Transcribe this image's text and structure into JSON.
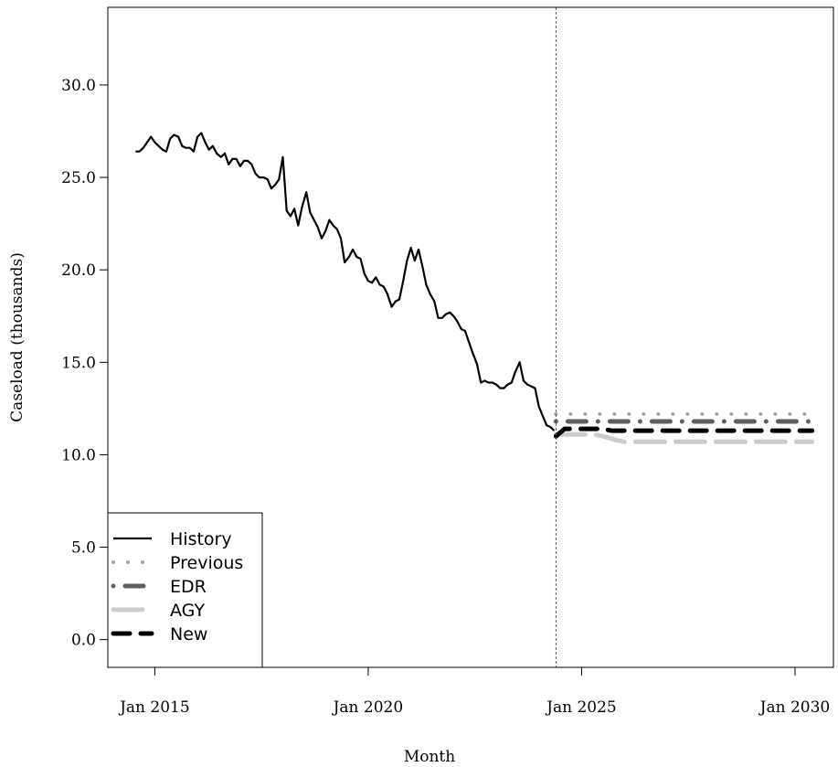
{
  "chart_data": {
    "type": "line",
    "xlabel": "Month",
    "ylabel": "Caseload (thousands)",
    "xlim": [
      2013.9,
      2030.9
    ],
    "ylim": [
      -1.5,
      34.2
    ],
    "x_ticks": [
      {
        "value": 2015,
        "label": "Jan 2015"
      },
      {
        "value": 2020,
        "label": "Jan 2020"
      },
      {
        "value": 2025,
        "label": "Jan 2025"
      },
      {
        "value": 2030,
        "label": "Jan 2030"
      }
    ],
    "y_ticks": [
      {
        "value": 0,
        "label": "0.0"
      },
      {
        "value": 5,
        "label": "5.0"
      },
      {
        "value": 10,
        "label": "10.0"
      },
      {
        "value": 15,
        "label": "15.0"
      },
      {
        "value": 20,
        "label": "20.0"
      },
      {
        "value": 25,
        "label": "25.0"
      },
      {
        "value": 30,
        "label": "30.0"
      }
    ],
    "forecast_start_marker": 2024.4,
    "legend_position": "bottom-left",
    "grid": false,
    "series": [
      {
        "name": "History",
        "color": "#000000",
        "style": "solid",
        "x": [
          2014.55,
          2014.64,
          2014.73,
          2014.82,
          2014.91,
          2015.0,
          2015.09,
          2015.18,
          2015.27,
          2015.36,
          2015.45,
          2015.55,
          2015.64,
          2015.73,
          2015.82,
          2015.91,
          2016.0,
          2016.09,
          2016.18,
          2016.27,
          2016.36,
          2016.45,
          2016.55,
          2016.64,
          2016.73,
          2016.82,
          2016.91,
          2017.0,
          2017.09,
          2017.18,
          2017.27,
          2017.36,
          2017.45,
          2017.55,
          2017.64,
          2017.73,
          2017.82,
          2017.91,
          2018.0,
          2018.09,
          2018.18,
          2018.27,
          2018.36,
          2018.45,
          2018.55,
          2018.64,
          2018.73,
          2018.82,
          2018.91,
          2019.0,
          2019.09,
          2019.18,
          2019.27,
          2019.36,
          2019.45,
          2019.55,
          2019.64,
          2019.73,
          2019.82,
          2019.91,
          2020.0,
          2020.09,
          2020.18,
          2020.27,
          2020.36,
          2020.45,
          2020.55,
          2020.64,
          2020.73,
          2020.82,
          2020.91,
          2021.0,
          2021.09,
          2021.18,
          2021.27,
          2021.36,
          2021.45,
          2021.55,
          2021.64,
          2021.73,
          2021.82,
          2021.91,
          2022.0,
          2022.09,
          2022.18,
          2022.27,
          2022.36,
          2022.45,
          2022.55,
          2022.64,
          2022.73,
          2022.82,
          2022.91,
          2023.0,
          2023.09,
          2023.18,
          2023.27,
          2023.36,
          2023.45,
          2023.55,
          2023.64,
          2023.73,
          2023.82,
          2023.91,
          2024.0,
          2024.09,
          2024.18,
          2024.27,
          2024.36
        ],
        "y": [
          26.4,
          26.4,
          26.6,
          26.9,
          27.2,
          26.9,
          26.7,
          26.5,
          26.4,
          27.1,
          27.3,
          27.2,
          26.7,
          26.6,
          26.6,
          26.4,
          27.2,
          27.4,
          26.9,
          26.5,
          26.7,
          26.3,
          26.1,
          26.3,
          25.7,
          26.0,
          26.0,
          25.6,
          25.9,
          25.9,
          25.7,
          25.2,
          25.0,
          25.0,
          24.9,
          24.4,
          24.6,
          24.9,
          26.1,
          23.2,
          22.9,
          23.3,
          22.4,
          23.4,
          24.2,
          23.1,
          22.7,
          22.3,
          21.7,
          22.1,
          22.7,
          22.4,
          22.2,
          21.7,
          20.4,
          20.7,
          21.1,
          20.7,
          20.6,
          19.8,
          19.4,
          19.3,
          19.6,
          19.2,
          19.1,
          18.7,
          18.0,
          18.3,
          18.4,
          19.4,
          20.5,
          21.2,
          20.5,
          21.1,
          20.2,
          19.2,
          18.7,
          18.3,
          17.4,
          17.4,
          17.6,
          17.7,
          17.5,
          17.2,
          16.8,
          16.7,
          16.1,
          15.5,
          14.9,
          13.9,
          14.0,
          13.9,
          13.9,
          13.8,
          13.6,
          13.6,
          13.8,
          13.9,
          14.5,
          15.0,
          14.0,
          13.8,
          13.7,
          13.6,
          12.6,
          12.1,
          11.6,
          11.5,
          11.3
        ]
      },
      {
        "name": "Previous",
        "color": "#a6a6a6",
        "style": "dotted",
        "x": [
          2024.4,
          2030.4
        ],
        "y": [
          12.2,
          12.2
        ]
      },
      {
        "name": "EDR",
        "color": "#5f5f5f",
        "style": "dashdot",
        "x": [
          2024.4,
          2030.4
        ],
        "y": [
          11.8,
          11.8
        ]
      },
      {
        "name": "AGY",
        "color": "#cccccc",
        "style": "longdash",
        "x": [
          2024.4,
          2024.7,
          2025.0,
          2025.3,
          2025.5,
          2025.8,
          2026.0,
          2030.4
        ],
        "y": [
          11.1,
          11.1,
          11.1,
          11.1,
          11.0,
          10.8,
          10.7,
          10.7
        ]
      },
      {
        "name": "New",
        "color": "#000000",
        "style": "dashed",
        "x": [
          2024.4,
          2024.5,
          2024.6,
          2024.8,
          2025.0,
          2025.3,
          2025.5,
          2025.7,
          2026.0,
          2030.4
        ],
        "y": [
          11.0,
          11.2,
          11.4,
          11.4,
          11.4,
          11.4,
          11.4,
          11.3,
          11.3,
          11.3
        ]
      }
    ]
  }
}
